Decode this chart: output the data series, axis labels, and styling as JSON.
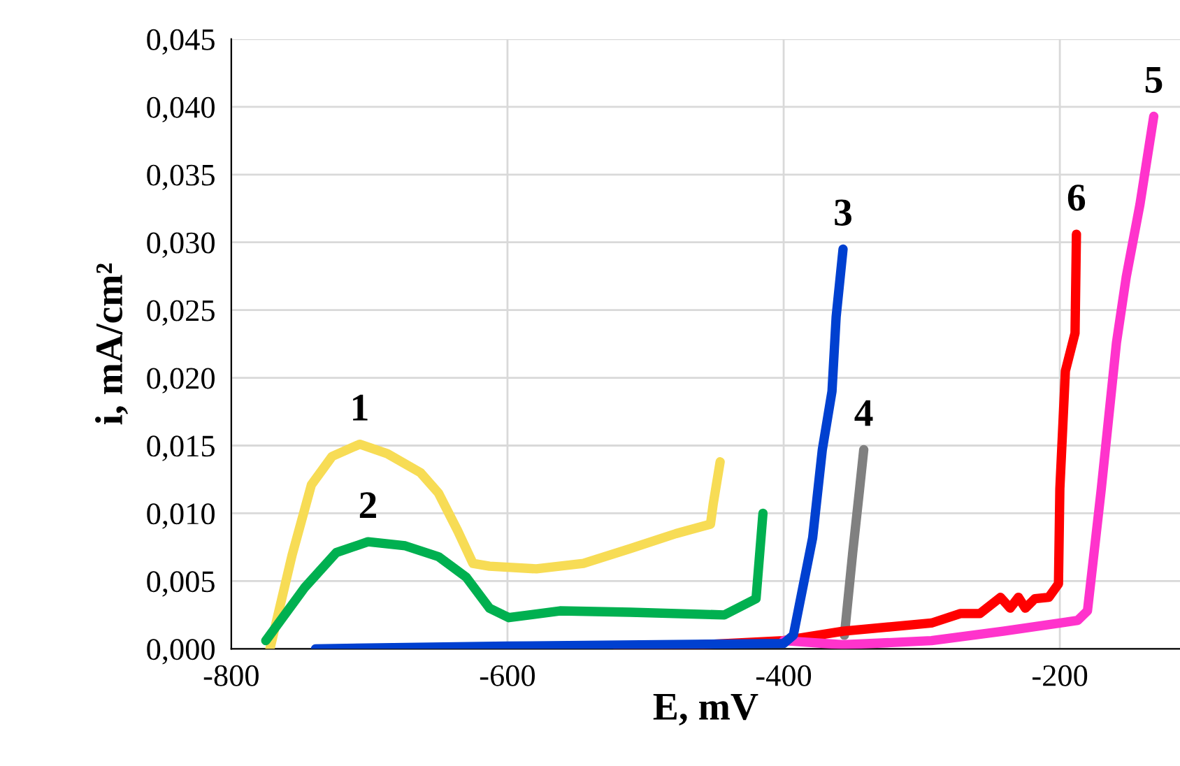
{
  "chart_data": {
    "type": "line",
    "xlabel": "E, mV",
    "ylabel": "i, mA/cm²",
    "xlim": [
      -800,
      -113
    ],
    "xticks": [
      -800,
      -600,
      -400,
      -200
    ],
    "ylim": [
      0,
      0.045
    ],
    "yticks": [
      {
        "value": 0,
        "label": "0,000"
      },
      {
        "value": 0.005,
        "label": "0,005"
      },
      {
        "value": 0.01,
        "label": "0,010"
      },
      {
        "value": 0.015,
        "label": "0,015"
      },
      {
        "value": 0.02,
        "label": "0,020"
      },
      {
        "value": 0.025,
        "label": "0,025"
      },
      {
        "value": 0.03,
        "label": "0,030"
      },
      {
        "value": 0.035,
        "label": "0,035"
      },
      {
        "value": 0.04,
        "label": "0,040"
      },
      {
        "value": 0.045,
        "label": "0,045"
      }
    ],
    "grid": true,
    "legend": false,
    "marker": "none",
    "line_style": "solid",
    "series": [
      {
        "name": "1",
        "color": "#f7dc55",
        "x": [
          -772,
          -756,
          -742,
          -727,
          -707,
          -687,
          -663,
          -650,
          -636,
          -625,
          -613,
          -579,
          -545,
          -511,
          -478,
          -453,
          -451,
          -446
        ],
        "values": [
          0.0,
          0.0069,
          0.0121,
          0.0142,
          0.0151,
          0.0144,
          0.013,
          0.0115,
          0.0087,
          0.0063,
          0.0061,
          0.0059,
          0.0063,
          0.0074,
          0.0085,
          0.0092,
          0.0107,
          0.0138
        ]
      },
      {
        "name": "2",
        "color": "#00b050",
        "x": [
          -775,
          -747,
          -724,
          -701,
          -674,
          -650,
          -630,
          -613,
          -599,
          -562,
          -511,
          -443,
          -420,
          -415
        ],
        "values": [
          0.0006,
          0.0045,
          0.0071,
          0.0079,
          0.0076,
          0.0068,
          0.0053,
          0.003,
          0.0023,
          0.0028,
          0.0027,
          0.0025,
          0.0037,
          0.01
        ]
      },
      {
        "name": "4",
        "color": "#808080",
        "x": [
          -356,
          -350,
          -345,
          -342
        ],
        "values": [
          0.001,
          0.0071,
          0.0118,
          0.0147
        ]
      },
      {
        "name": "6",
        "color": "#ff0000",
        "x": [
          -520,
          -400,
          -357,
          -293,
          -272,
          -258,
          -243,
          -236,
          -230,
          -225,
          -218,
          -208,
          -201,
          -200,
          -196,
          -189,
          -188
        ],
        "values": [
          0.0,
          0.0006,
          0.0013,
          0.0019,
          0.0026,
          0.0026,
          0.0038,
          0.003,
          0.0038,
          0.003,
          0.0037,
          0.0038,
          0.0048,
          0.0118,
          0.0205,
          0.0233,
          0.0306
        ]
      },
      {
        "name": "5",
        "color": "#ff33cc",
        "x": [
          -400,
          -357,
          -293,
          -241,
          -187,
          -180,
          -170,
          -159,
          -152,
          -142,
          -132
        ],
        "values": [
          0.0006,
          0.0003,
          0.0006,
          0.0013,
          0.0021,
          0.0028,
          0.0118,
          0.0226,
          0.0274,
          0.0328,
          0.0393
        ]
      },
      {
        "name": "3",
        "color": "#0040d0",
        "x": [
          -739,
          -600,
          -400,
          -393,
          -379,
          -372,
          -365,
          -362,
          -357
        ],
        "values": [
          0.0,
          0.0002,
          0.0004,
          0.001,
          0.0082,
          0.0147,
          0.019,
          0.0245,
          0.0295
        ]
      }
    ]
  }
}
